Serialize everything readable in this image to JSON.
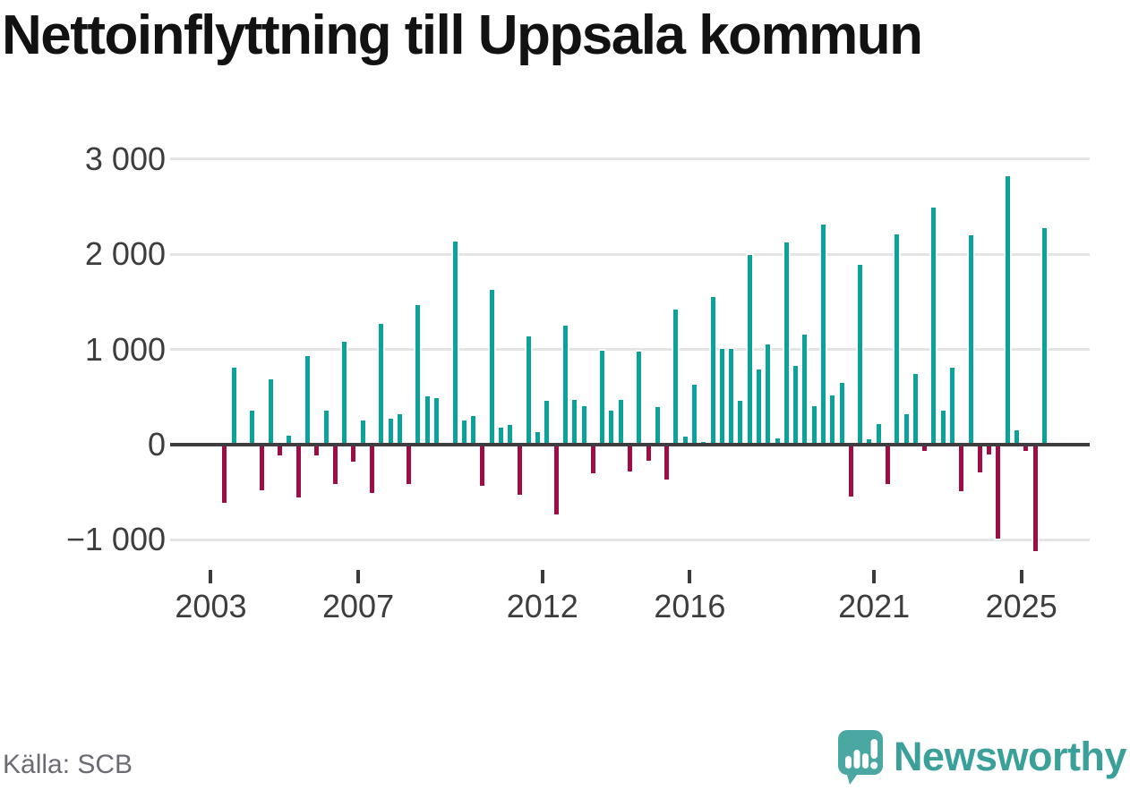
{
  "header": {
    "title": "Nettoinflyttning till Uppsala kommun"
  },
  "footer": {
    "source_label": "Källa: SCB",
    "brand_name": "Newsworthy"
  },
  "chart_data": {
    "type": "bar",
    "title": "Nettoinflyttning till Uppsala kommun",
    "xlabel": "",
    "ylabel": "",
    "ylim": [
      -1350,
      3150
    ],
    "grid": "horizontal",
    "legend": "none",
    "colors": {
      "positive_bar": "#0ba29a",
      "negative_bar": "#a00d46",
      "gridline": "#e4e4e4",
      "zero_axis": "#3e3e3e",
      "axis_text": "#3d3d3d",
      "title_text": "#121212",
      "source_text": "#6b6b74",
      "brand_teal": "#3ba09a",
      "logo_bubble": "#4aa7a1"
    },
    "y_ticks": [
      {
        "value": 3000,
        "label": "3 000"
      },
      {
        "value": 2000,
        "label": "2 000"
      },
      {
        "value": 1000,
        "label": "1 000"
      },
      {
        "value": 0,
        "label": "0"
      },
      {
        "value": -1000,
        "label": "−1 000"
      }
    ],
    "x_tick_years": [
      2003,
      2007,
      2012,
      2016,
      2021,
      2025
    ],
    "categories": [
      "2003 Q1",
      "2003 Q2",
      "2003 Q3",
      "2003 Q4",
      "2004 Q1",
      "2004 Q2",
      "2004 Q3",
      "2004 Q4",
      "2005 Q1",
      "2005 Q2",
      "2005 Q3",
      "2005 Q4",
      "2006 Q1",
      "2006 Q2",
      "2006 Q3",
      "2006 Q4",
      "2007 Q1",
      "2007 Q2",
      "2007 Q3",
      "2007 Q4",
      "2008 Q1",
      "2008 Q2",
      "2008 Q3",
      "2008 Q4",
      "2009 Q1",
      "2009 Q2",
      "2009 Q3",
      "2009 Q4",
      "2010 Q1",
      "2010 Q2",
      "2010 Q3",
      "2010 Q4",
      "2011 Q1",
      "2011 Q2",
      "2011 Q3",
      "2011 Q4",
      "2012 Q1",
      "2012 Q2",
      "2012 Q3",
      "2012 Q4",
      "2013 Q1",
      "2013 Q2",
      "2013 Q3",
      "2013 Q4",
      "2014 Q1",
      "2014 Q2",
      "2014 Q3",
      "2014 Q4",
      "2015 Q1",
      "2015 Q2",
      "2015 Q3",
      "2015 Q4",
      "2016 Q1",
      "2016 Q2",
      "2016 Q3",
      "2016 Q4",
      "2017 Q1",
      "2017 Q2",
      "2017 Q3",
      "2017 Q4",
      "2018 Q1",
      "2018 Q2",
      "2018 Q3",
      "2018 Q4",
      "2019 Q1",
      "2019 Q2",
      "2019 Q3",
      "2019 Q4",
      "2020 Q1",
      "2020 Q2",
      "2020 Q3",
      "2020 Q4",
      "2021 Q1",
      "2021 Q2",
      "2021 Q3",
      "2021 Q4",
      "2022 Q1",
      "2022 Q2",
      "2022 Q3",
      "2022 Q4",
      "2023 Q1",
      "2023 Q2",
      "2023 Q3",
      "2023 Q4",
      "2024 Q1",
      "2024 Q2",
      "2024 Q3",
      "2024 Q4",
      "2025 Q1",
      "2025 Q2",
      "2025 Q3"
    ],
    "values": [
      0,
      -610,
      805,
      0,
      355,
      -480,
      690,
      -115,
      95,
      -555,
      930,
      -110,
      360,
      -415,
      1080,
      -180,
      250,
      -505,
      1265,
      270,
      320,
      -415,
      1470,
      505,
      490,
      0,
      2135,
      255,
      305,
      -435,
      1630,
      175,
      210,
      -530,
      1140,
      130,
      460,
      -735,
      1250,
      470,
      405,
      -300,
      985,
      355,
      470,
      -285,
      975,
      -170,
      395,
      -365,
      1420,
      80,
      630,
      25,
      1550,
      1005,
      1010,
      460,
      1990,
      785,
      1050,
      70,
      2120,
      825,
      1155,
      400,
      2310,
      515,
      650,
      -545,
      1885,
      55,
      215,
      -410,
      2205,
      315,
      740,
      -65,
      2490,
      360,
      810,
      -490,
      2200,
      -290,
      -100,
      -990,
      2815,
      150,
      -70,
      -1120,
      2270
    ]
  }
}
